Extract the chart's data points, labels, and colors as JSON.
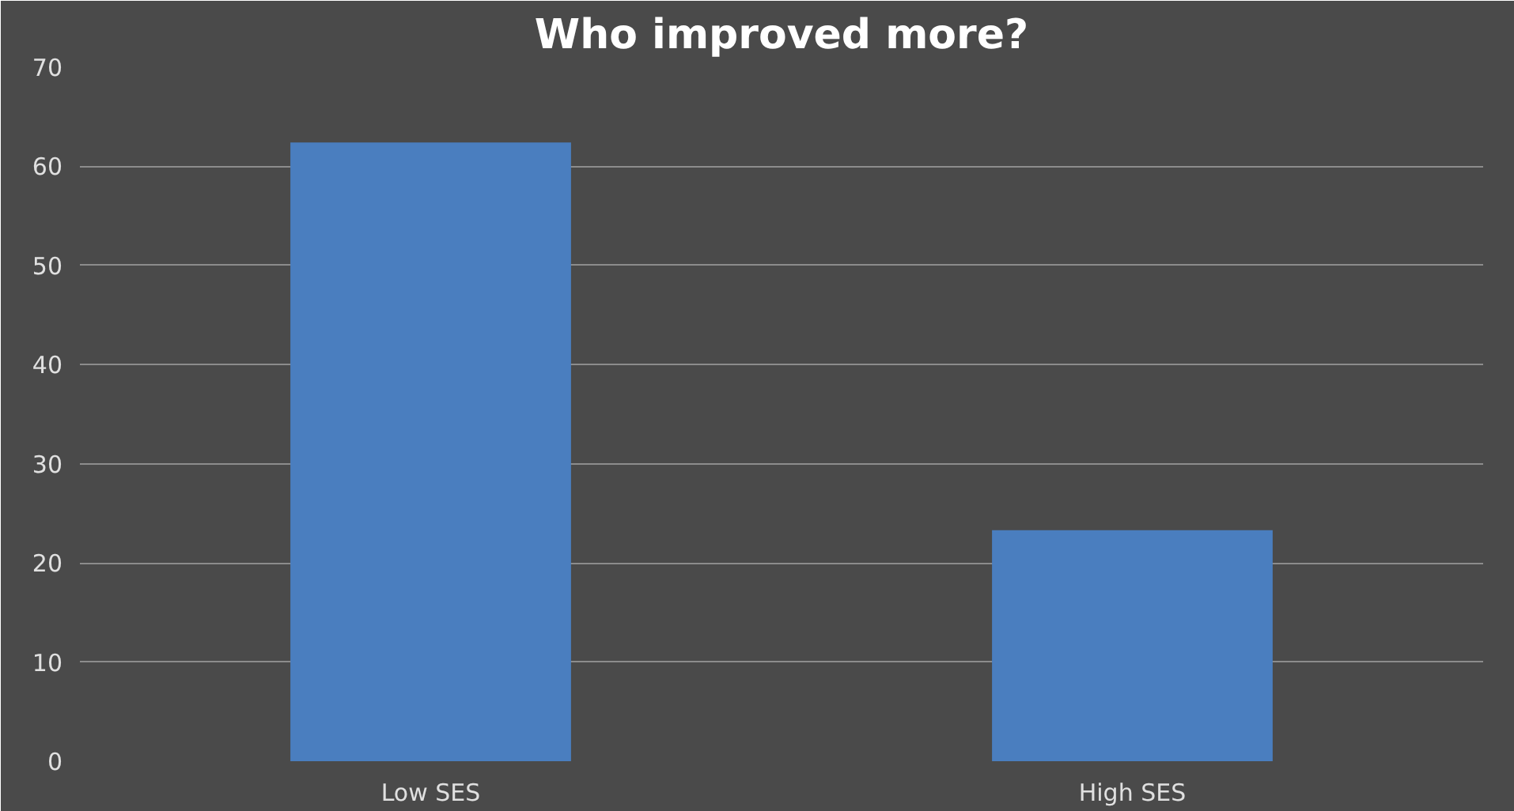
{
  "chart_data": {
    "type": "bar",
    "title": "Who improved more?",
    "categories": [
      "Low SES",
      "High SES"
    ],
    "values": [
      62.4,
      23.3
    ],
    "color": "#4a7ebf",
    "ylim": [
      0,
      70
    ],
    "yticks": [
      0,
      10,
      20,
      30,
      40,
      50,
      60,
      70
    ],
    "grid": "y"
  }
}
